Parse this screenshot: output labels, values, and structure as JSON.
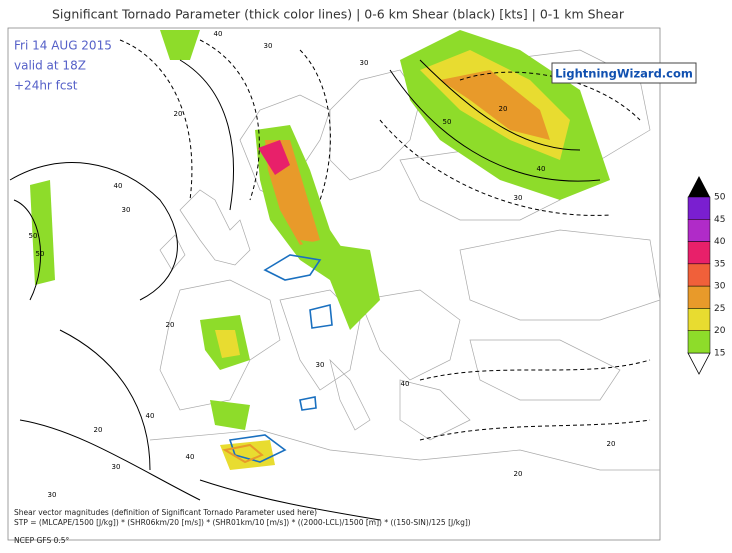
{
  "header": {
    "title": "Significant Tornado Parameter (thick color lines) | 0-6 km Shear (black) [kts] | 0-1 km Shear",
    "info": [
      "Fri 14 AUG 2015",
      "valid at 18Z",
      "+24hr fcst"
    ],
    "logo": "LightningWizard.com"
  },
  "colorbar": {
    "ticks": [
      50,
      45,
      40,
      35,
      30,
      25,
      20,
      15
    ],
    "colors": [
      "#7a1fd0",
      "#b02bc8",
      "#e8206a",
      "#f0603a",
      "#e89a2a",
      "#e8dc30",
      "#8edc2a"
    ]
  },
  "contour_labels": [
    40,
    30,
    20,
    50,
    50,
    40,
    30,
    50,
    40,
    30,
    20,
    20,
    40,
    30,
    30,
    40,
    20,
    20,
    30,
    40,
    20,
    30
  ],
  "footer": {
    "lines": [
      "Shear vector magnitudes (definition of Significant Tornado Parameter used here)",
      "STP = (MLCAPE/1500 [J/kg]) * (SHR06km/20 [m/s]) * (SHR01km/10 [m/s]) * ((2000-LCL)/1500 [m]) * ((150-SIN)/125 [J/kg])",
      "NCEP GFS 0.5°"
    ]
  }
}
